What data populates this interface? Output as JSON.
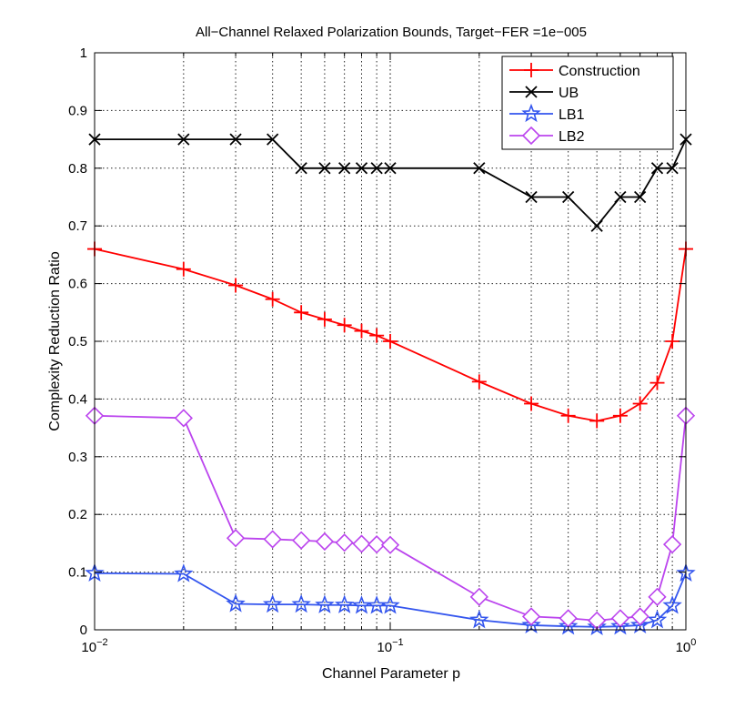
{
  "chart_data": {
    "type": "line",
    "title": "All−Channel Relaxed Polarization Bounds, Target−FER =1e−005",
    "xlabel": "Channel Parameter p",
    "ylabel": "Complexity Reduction Ratio",
    "xscale": "log",
    "xlim": [
      0.01,
      1
    ],
    "ylim": [
      0,
      1
    ],
    "grid": true,
    "legend_position": "top-right",
    "x_ticks": [
      {
        "value": 0.01,
        "base": "10",
        "exp": "−2"
      },
      {
        "value": 0.1,
        "base": "10",
        "exp": "−1"
      },
      {
        "value": 1,
        "base": "10",
        "exp": "0"
      }
    ],
    "y_ticks": [
      {
        "value": 0,
        "label": "0"
      },
      {
        "value": 0.1,
        "label": "0.1"
      },
      {
        "value": 0.2,
        "label": "0.2"
      },
      {
        "value": 0.3,
        "label": "0.3"
      },
      {
        "value": 0.4,
        "label": "0.4"
      },
      {
        "value": 0.5,
        "label": "0.5"
      },
      {
        "value": 0.6,
        "label": "0.6"
      },
      {
        "value": 0.7,
        "label": "0.7"
      },
      {
        "value": 0.8,
        "label": "0.8"
      },
      {
        "value": 0.9,
        "label": "0.9"
      },
      {
        "value": 1,
        "label": "1"
      }
    ],
    "x": [
      0.01,
      0.02,
      0.03,
      0.04,
      0.05,
      0.06,
      0.07,
      0.08,
      0.09,
      0.1,
      0.2,
      0.3,
      0.4,
      0.5,
      0.6,
      0.7,
      0.8,
      0.9,
      1.0
    ],
    "series": [
      {
        "name": "Construction",
        "color": "#ff0000",
        "marker": "plus",
        "values": [
          0.66,
          0.625,
          0.597,
          0.573,
          0.55,
          0.538,
          0.528,
          0.518,
          0.51,
          0.5,
          0.43,
          0.392,
          0.371,
          0.362,
          0.371,
          0.392,
          0.428,
          0.5,
          0.66
        ]
      },
      {
        "name": "UB",
        "color": "#000000",
        "marker": "x",
        "values": [
          0.85,
          0.85,
          0.85,
          0.85,
          0.8,
          0.8,
          0.8,
          0.8,
          0.8,
          0.8,
          0.8,
          0.75,
          0.75,
          0.7,
          0.75,
          0.75,
          0.8,
          0.8,
          0.85
        ]
      },
      {
        "name": "LB1",
        "color": "#3355ee",
        "marker": "star",
        "values": [
          0.098,
          0.097,
          0.045,
          0.044,
          0.044,
          0.043,
          0.043,
          0.042,
          0.042,
          0.042,
          0.017,
          0.008,
          0.006,
          0.005,
          0.006,
          0.008,
          0.017,
          0.042,
          0.098
        ]
      },
      {
        "name": "LB2",
        "color": "#bb44ee",
        "marker": "diamond",
        "values": [
          0.371,
          0.367,
          0.159,
          0.157,
          0.155,
          0.153,
          0.151,
          0.149,
          0.148,
          0.147,
          0.057,
          0.023,
          0.02,
          0.016,
          0.02,
          0.023,
          0.057,
          0.148,
          0.371
        ]
      }
    ]
  }
}
